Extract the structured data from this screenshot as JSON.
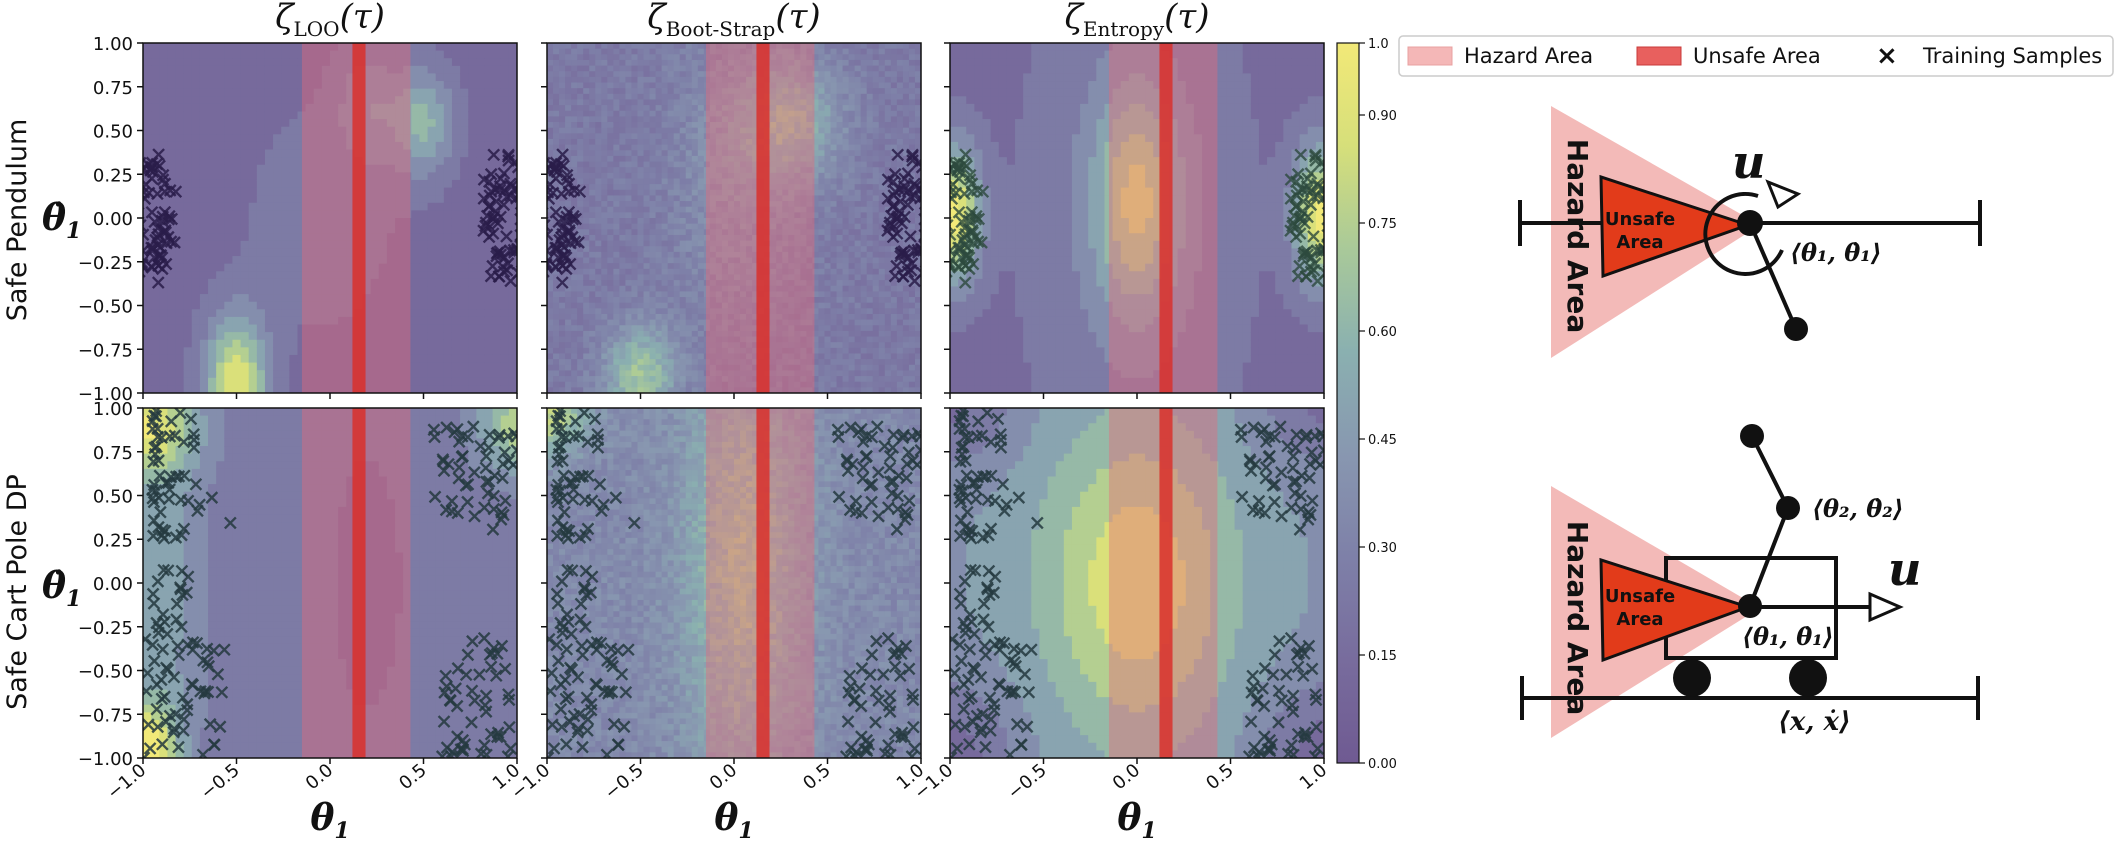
{
  "figure": {
    "column_titles": [
      {
        "symbol": "ζ",
        "subscript": "LOO",
        "arg": "(τ)"
      },
      {
        "symbol": "ζ",
        "subscript": "Boot-Strap",
        "arg": "(τ)"
      },
      {
        "symbol": "ζ",
        "subscript": "Entropy",
        "arg": "(τ)"
      }
    ],
    "row_titles": [
      "Safe Pendulum",
      "Safe Cart Pole DP"
    ],
    "ylabel": "θ̇₁",
    "ylabel_main": "θ̇",
    "ylabel_sub": "1",
    "xlabel_main": "θ",
    "xlabel_sub": "1",
    "legend": {
      "hazard_label": "Hazard Area",
      "unsafe_label": "Unsafe Area",
      "training_label": "Training Samples",
      "training_marker": "×"
    },
    "diagram": {
      "hazard_text": "Hazard Area",
      "unsafe_line1": "Unsafe",
      "unsafe_line2": "Area",
      "control_label": "u",
      "pendulum_state": "⟨θ₁, θ̇₁⟩",
      "cart_state_joint1": "⟨θ₁, θ̇₁⟩",
      "cart_state_joint2": "⟨θ₂, θ̇₂⟩",
      "cart_state_cart": "⟨x, ẋ⟩"
    }
  },
  "chart_data": {
    "type": "heatmap",
    "x_range": [
      -1.0,
      1.0
    ],
    "y_range": [
      -1.0,
      1.0
    ],
    "x_ticks": [
      "−1.0",
      "−0.5",
      "0.0",
      "0.5",
      "1.0"
    ],
    "x_tick_values": [
      -1.0,
      -0.5,
      0.0,
      0.5,
      1.0
    ],
    "y_ticks": [
      "−1.00",
      "−0.75",
      "−0.50",
      "−0.25",
      "0.00",
      "0.25",
      "0.50",
      "0.75",
      "1.00"
    ],
    "y_tick_values": [
      -1.0,
      -0.75,
      -0.5,
      -0.25,
      0.0,
      0.25,
      0.5,
      0.75,
      1.0
    ],
    "hazard_area_theta": [
      -0.15,
      0.43
    ],
    "unsafe_area_theta": [
      0.12,
      0.19
    ],
    "colorbar": {
      "range": [
        0.0,
        1.0
      ],
      "ticks": [
        "0.00",
        "0.15",
        "0.30",
        "0.45",
        "0.60",
        "0.75",
        "0.90",
        "1.0"
      ],
      "tick_values": [
        0.0,
        0.15,
        0.3,
        0.45,
        0.6,
        0.75,
        0.9,
        1.0
      ],
      "colors": [
        "#6f5a92",
        "#786c9d",
        "#7e80a8",
        "#8897b0",
        "#8ab0b0",
        "#a9c999",
        "#d6df7a",
        "#f2e978"
      ]
    },
    "panels": [
      {
        "row": "Safe Pendulum",
        "column": "LOO",
        "background": 0.13,
        "blobs": [
          {
            "x": 0.5,
            "y": 0.55,
            "sx": 0.12,
            "sy": 0.22,
            "v": 0.45
          },
          {
            "x": 0.2,
            "y": 0.65,
            "sx": 0.12,
            "sy": 0.25,
            "v": 0.25
          },
          {
            "x": -0.5,
            "y": -0.95,
            "sx": 0.12,
            "sy": 0.28,
            "v": 0.78
          },
          {
            "x": -0.05,
            "y": 0.0,
            "sx": 0.3,
            "sy": 0.5,
            "v": 0.12
          }
        ],
        "samples": "pendulum"
      },
      {
        "row": "Safe Pendulum",
        "column": "Boot-Strap",
        "background": 0.24,
        "blobs": [
          {
            "x": 0.3,
            "y": 0.55,
            "sx": 0.2,
            "sy": 0.25,
            "v": 0.35
          },
          {
            "x": -0.5,
            "y": -0.9,
            "sx": 0.14,
            "sy": 0.2,
            "v": 0.45
          },
          {
            "x": 0.0,
            "y": 0.2,
            "sx": 0.25,
            "sy": 0.6,
            "v": 0.15
          }
        ],
        "samples": "pendulum"
      },
      {
        "row": "Safe Pendulum",
        "column": "Entropy",
        "background": 0.12,
        "blobs": [
          {
            "x": 0.0,
            "y": 0.1,
            "sx": 0.16,
            "sy": 0.45,
            "v": 0.55
          },
          {
            "x": -0.98,
            "y": 0.02,
            "sx": 0.1,
            "sy": 0.28,
            "v": 0.85
          },
          {
            "x": 0.98,
            "y": 0.02,
            "sx": 0.1,
            "sy": 0.28,
            "v": 0.85
          },
          {
            "x": 0.0,
            "y": 0.0,
            "sx": 0.45,
            "sy": 1.2,
            "v": 0.2
          }
        ],
        "samples": "pendulum"
      },
      {
        "row": "Safe Cart Pole DP",
        "column": "LOO",
        "background": 0.25,
        "blobs": [
          {
            "x": -1.0,
            "y": -1.0,
            "sx": 0.12,
            "sy": 0.22,
            "v": 0.85
          },
          {
            "x": -1.0,
            "y": 0.9,
            "sx": 0.2,
            "sy": 0.2,
            "v": 0.6
          },
          {
            "x": 1.0,
            "y": 0.9,
            "sx": 0.15,
            "sy": 0.2,
            "v": 0.5
          },
          {
            "x": -0.9,
            "y": 0.0,
            "sx": 0.15,
            "sy": 0.8,
            "v": 0.25
          },
          {
            "x": 0.2,
            "y": 0.0,
            "sx": 0.25,
            "sy": 1.0,
            "v": -0.08
          }
        ],
        "samples": "cartpole"
      },
      {
        "row": "Safe Cart Pole DP",
        "column": "Boot-Strap",
        "background": 0.35,
        "blobs": [
          {
            "x": 0.05,
            "y": 0.1,
            "sx": 0.22,
            "sy": 0.9,
            "v": 0.35
          },
          {
            "x": -1.0,
            "y": 0.95,
            "sx": 0.15,
            "sy": 0.15,
            "v": 0.45
          }
        ],
        "samples": "cartpole"
      },
      {
        "row": "Safe Cart Pole DP",
        "column": "Entropy",
        "background": 0.42,
        "blobs": [
          {
            "x": 0.0,
            "y": 0.0,
            "sx": 0.36,
            "sy": 0.65,
            "v": 0.5
          },
          {
            "x": -1.0,
            "y": -1.0,
            "sx": 0.25,
            "sy": 0.3,
            "v": -0.3
          },
          {
            "x": 1.0,
            "y": -1.0,
            "sx": 0.25,
            "sy": 0.3,
            "v": -0.3
          },
          {
            "x": -1.0,
            "y": 1.0,
            "sx": 0.25,
            "sy": 0.25,
            "v": -0.25
          },
          {
            "x": 1.0,
            "y": 1.0,
            "sx": 0.25,
            "sy": 0.25,
            "v": -0.25
          }
        ],
        "samples": "cartpole"
      }
    ]
  }
}
